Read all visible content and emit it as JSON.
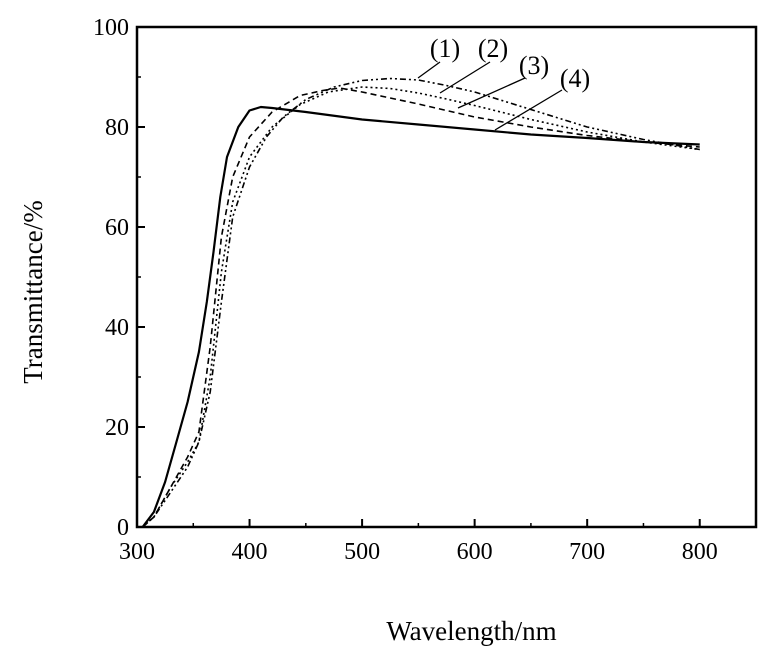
{
  "chart_data": {
    "type": "line",
    "title": "",
    "xlabel": "Wavelength/nm",
    "ylabel": "Transmittance/%",
    "xlim": [
      300,
      850
    ],
    "ylim": [
      0,
      100
    ],
    "xticks": [
      300,
      400,
      500,
      600,
      700,
      800
    ],
    "yticks": [
      0,
      20,
      40,
      60,
      80,
      100
    ],
    "grid": false,
    "series": [
      {
        "name": "(1)",
        "line_style": "dash-dot-dot",
        "points": [
          [
            305,
            0
          ],
          [
            315,
            2
          ],
          [
            330,
            7
          ],
          [
            345,
            12
          ],
          [
            355,
            17
          ],
          [
            365,
            27
          ],
          [
            375,
            45
          ],
          [
            385,
            62
          ],
          [
            400,
            72
          ],
          [
            415,
            78
          ],
          [
            430,
            82
          ],
          [
            450,
            85.5
          ],
          [
            475,
            88
          ],
          [
            500,
            89.3
          ],
          [
            525,
            89.7
          ],
          [
            550,
            89.4
          ],
          [
            575,
            88.3
          ],
          [
            600,
            87
          ],
          [
            650,
            83.5
          ],
          [
            700,
            80
          ],
          [
            750,
            77.5
          ],
          [
            800,
            75.5
          ]
        ],
        "pointer_to": [
          540,
          89.6
        ]
      },
      {
        "name": "(2)",
        "line_style": "dotted",
        "points": [
          [
            305,
            0
          ],
          [
            315,
            2
          ],
          [
            330,
            8
          ],
          [
            345,
            13
          ],
          [
            355,
            17
          ],
          [
            365,
            30
          ],
          [
            375,
            51
          ],
          [
            385,
            65
          ],
          [
            400,
            74
          ],
          [
            420,
            80
          ],
          [
            445,
            84.5
          ],
          [
            470,
            87
          ],
          [
            500,
            88
          ],
          [
            525,
            87.7
          ],
          [
            550,
            86.8
          ],
          [
            575,
            85.6
          ],
          [
            600,
            84.3
          ],
          [
            650,
            81.5
          ],
          [
            700,
            79
          ],
          [
            750,
            77
          ],
          [
            800,
            75.5
          ]
        ],
        "pointer_to": [
          560,
          86.5
        ]
      },
      {
        "name": "(3)",
        "line_style": "dashed",
        "points": [
          [
            305,
            0
          ],
          [
            315,
            2
          ],
          [
            330,
            8
          ],
          [
            345,
            14
          ],
          [
            355,
            19
          ],
          [
            365,
            36
          ],
          [
            375,
            58
          ],
          [
            385,
            70
          ],
          [
            400,
            78
          ],
          [
            420,
            83
          ],
          [
            445,
            86.3
          ],
          [
            465,
            87.3
          ],
          [
            480,
            87.8
          ],
          [
            500,
            87
          ],
          [
            525,
            85.8
          ],
          [
            550,
            84.6
          ],
          [
            575,
            83.3
          ],
          [
            600,
            82
          ],
          [
            650,
            80
          ],
          [
            700,
            78.3
          ],
          [
            750,
            77
          ],
          [
            800,
            76
          ]
        ],
        "pointer_to": [
          585,
          83.5
        ]
      },
      {
        "name": "(4)",
        "line_style": "solid",
        "points": [
          [
            305,
            0
          ],
          [
            315,
            3
          ],
          [
            325,
            9
          ],
          [
            335,
            17
          ],
          [
            345,
            25
          ],
          [
            355,
            35
          ],
          [
            362,
            45
          ],
          [
            368,
            55
          ],
          [
            374,
            66
          ],
          [
            380,
            74
          ],
          [
            390,
            80
          ],
          [
            400,
            83.3
          ],
          [
            410,
            84
          ],
          [
            420,
            83.8
          ],
          [
            450,
            83
          ],
          [
            500,
            81.5
          ],
          [
            550,
            80.5
          ],
          [
            600,
            79.5
          ],
          [
            650,
            78.5
          ],
          [
            700,
            77.8
          ],
          [
            750,
            77
          ],
          [
            800,
            76.5
          ]
        ],
        "pointer_to": [
          620,
          79.5
        ]
      }
    ]
  }
}
